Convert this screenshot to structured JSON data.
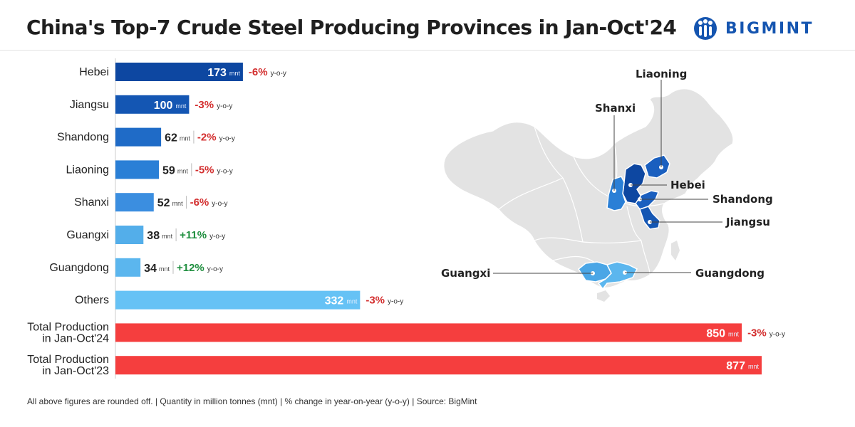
{
  "header": {
    "title": "China's Top-7 Crude Steel Producing Provinces in Jan-Oct'24",
    "logo_text": "BIGMINT"
  },
  "chart_data": {
    "type": "bar",
    "orientation": "horizontal",
    "title": "China's Top-7 Crude Steel Producing Provinces in Jan-Oct'24",
    "unit": "mnt",
    "change_suffix": "y-o-y",
    "categories": [
      "Hebei",
      "Jiangsu",
      "Shandong",
      "Liaoning",
      "Shanxi",
      "Guangxi",
      "Guangdong",
      "Others",
      "Total Production in Jan-Oct'24",
      "Total Production in Jan-Oct'23"
    ],
    "label_lines": [
      [
        "Hebei"
      ],
      [
        "Jiangsu"
      ],
      [
        "Shandong"
      ],
      [
        "Liaoning"
      ],
      [
        "Shanxi"
      ],
      [
        "Guangxi"
      ],
      [
        "Guangdong"
      ],
      [
        "Others"
      ],
      [
        "Total Production",
        "in Jan-Oct'24"
      ],
      [
        "Total Production",
        "in Jan-Oct'23"
      ]
    ],
    "values": [
      173,
      100,
      62,
      59,
      52,
      38,
      34,
      332,
      850,
      877
    ],
    "yoy_change": [
      "-6%",
      "-3%",
      "-2%",
      "-5%",
      "-6%",
      "+11%",
      "+12%",
      "-3%",
      "-3%",
      ""
    ],
    "colors": [
      "#0d47a1",
      "#1456b3",
      "#1f6bc7",
      "#2a7fd6",
      "#3b8ee0",
      "#53aeea",
      "#5bb6ee",
      "#66c2f5",
      "#f53e3e",
      "#f53e3e"
    ]
  },
  "map": {
    "provinces": [
      {
        "name": "Liaoning",
        "color": "#1a5fbf"
      },
      {
        "name": "Shanxi",
        "color": "#2a7fd6"
      },
      {
        "name": "Hebei",
        "color": "#0d47a1"
      },
      {
        "name": "Shandong",
        "color": "#1a5fbf"
      },
      {
        "name": "Jiangsu",
        "color": "#1456b3"
      },
      {
        "name": "Guangxi",
        "color": "#4aa6e6"
      },
      {
        "name": "Guangdong",
        "color": "#5bb6ee"
      }
    ]
  },
  "colors": {
    "negative": "#d32f2f",
    "positive": "#1e8e3e",
    "brand": "#1555b0",
    "land": "#e3e3e3"
  },
  "footnote": "All above figures are rounded off. | Quantity in million tonnes (mnt) | % change in year-on-year (y-o-y) | Source: BigMint"
}
